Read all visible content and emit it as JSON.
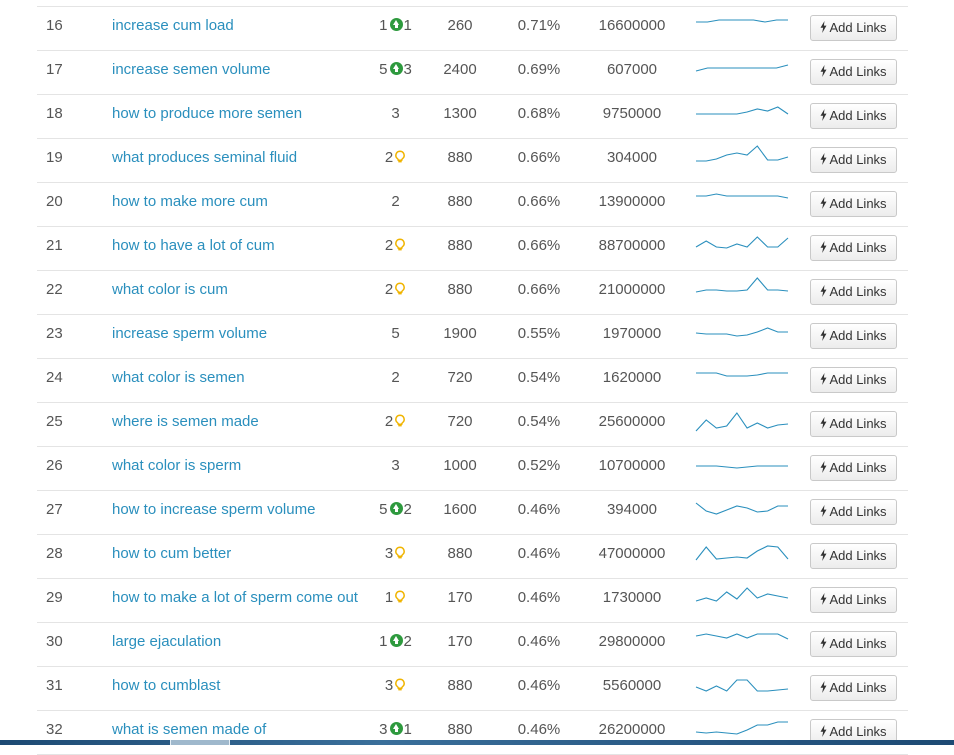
{
  "colors": {
    "link": "#2a8fbd",
    "up_badge": "#2e9a3e",
    "bulb": "#f0b400",
    "spark": "#2a8fbd",
    "row_border": "#e4e4e4"
  },
  "icons": {
    "up": "arrow-circle-up-icon",
    "bulb": "lightbulb-icon",
    "bolt": "bolt-icon"
  },
  "button_label": "Add Links",
  "rows": [
    {
      "rank": "16",
      "keyword": "increase cum load",
      "opp": "1",
      "badge": "up",
      "badge_value": "1",
      "volume": "260",
      "ctr": "0.71%",
      "results": "16600000",
      "trend": [
        4,
        4,
        2,
        2,
        2,
        2,
        4,
        2,
        2
      ]
    },
    {
      "rank": "17",
      "keyword": "increase semen volume",
      "opp": "5",
      "badge": "up",
      "badge_value": "3",
      "volume": "2400",
      "ctr": "0.69%",
      "results": "607000",
      "trend": [
        9,
        6,
        6,
        6,
        6,
        6,
        6,
        6,
        3
      ]
    },
    {
      "rank": "18",
      "keyword": "how to produce more semen",
      "opp": "3",
      "badge": "",
      "badge_value": "",
      "volume": "1300",
      "ctr": "0.68%",
      "results": "9750000",
      "trend": [
        8,
        8,
        8,
        8,
        8,
        6,
        3,
        5,
        1,
        8
      ]
    },
    {
      "rank": "19",
      "keyword": "what produces seminal fluid",
      "opp": "2",
      "badge": "bulb",
      "badge_value": "",
      "volume": "880",
      "ctr": "0.66%",
      "results": "304000",
      "trend": [
        11,
        11,
        9,
        5,
        3,
        5,
        -4,
        10,
        10,
        7
      ]
    },
    {
      "rank": "20",
      "keyword": "how to make more cum",
      "opp": "2",
      "badge": "",
      "badge_value": "",
      "volume": "880",
      "ctr": "0.66%",
      "results": "13900000",
      "trend": [
        2,
        2,
        0,
        2,
        2,
        2,
        2,
        2,
        2,
        4
      ]
    },
    {
      "rank": "21",
      "keyword": "how to have a lot of cum",
      "opp": "2",
      "badge": "bulb",
      "badge_value": "",
      "volume": "880",
      "ctr": "0.66%",
      "results": "88700000",
      "trend": [
        9,
        3,
        9,
        10,
        6,
        9,
        -1,
        9,
        9,
        0
      ]
    },
    {
      "rank": "22",
      "keyword": "what color is cum",
      "opp": "2",
      "badge": "bulb",
      "badge_value": "",
      "volume": "880",
      "ctr": "0.66%",
      "results": "21000000",
      "trend": [
        10,
        8,
        8,
        9,
        9,
        8,
        -4,
        8,
        8,
        9
      ]
    },
    {
      "rank": "23",
      "keyword": "increase sperm volume",
      "opp": "5",
      "badge": "",
      "badge_value": "",
      "volume": "1900",
      "ctr": "0.55%",
      "results": "1970000",
      "trend": [
        7,
        8,
        8,
        8,
        10,
        9,
        6,
        2,
        6,
        6
      ]
    },
    {
      "rank": "24",
      "keyword": "what color is semen",
      "opp": "2",
      "badge": "",
      "badge_value": "",
      "volume": "720",
      "ctr": "0.54%",
      "results": "1620000",
      "trend": [
        3,
        3,
        3,
        6,
        6,
        6,
        5,
        3,
        3,
        3
      ]
    },
    {
      "rank": "25",
      "keyword": "where is semen made",
      "opp": "2",
      "badge": "bulb",
      "badge_value": "",
      "volume": "720",
      "ctr": "0.54%",
      "results": "25600000",
      "trend": [
        17,
        6,
        14,
        12,
        -1,
        14,
        9,
        14,
        11,
        10
      ]
    },
    {
      "rank": "26",
      "keyword": "what color is sperm",
      "opp": "3",
      "badge": "",
      "badge_value": "",
      "volume": "1000",
      "ctr": "0.52%",
      "results": "10700000",
      "trend": [
        8,
        8,
        8,
        9,
        10,
        9,
        8,
        8,
        8,
        8
      ]
    },
    {
      "rank": "27",
      "keyword": "how to increase sperm volume",
      "opp": "5",
      "badge": "up",
      "badge_value": "2",
      "volume": "1600",
      "ctr": "0.46%",
      "results": "394000",
      "trend": [
        1,
        9,
        12,
        8,
        4,
        6,
        10,
        9,
        4,
        4
      ]
    },
    {
      "rank": "28",
      "keyword": "how to cum better",
      "opp": "3",
      "badge": "bulb",
      "badge_value": "",
      "volume": "880",
      "ctr": "0.46%",
      "results": "47000000",
      "trend": [
        14,
        1,
        13,
        12,
        11,
        12,
        5,
        0,
        1,
        13
      ]
    },
    {
      "rank": "29",
      "keyword": "how to make a lot of sperm come out",
      "opp": "1",
      "badge": "bulb",
      "badge_value": "",
      "volume": "170",
      "ctr": "0.46%",
      "results": "1730000",
      "trend": [
        11,
        8,
        11,
        2,
        9,
        -2,
        8,
        4,
        6,
        8
      ]
    },
    {
      "rank": "30",
      "keyword": "large ejaculation",
      "opp": "1",
      "badge": "up",
      "badge_value": "2",
      "volume": "170",
      "ctr": "0.46%",
      "results": "29800000",
      "trend": [
        2,
        0,
        2,
        4,
        0,
        4,
        0,
        0,
        0,
        5
      ]
    },
    {
      "rank": "31",
      "keyword": "how to cumblast",
      "opp": "3",
      "badge": "bulb",
      "badge_value": "",
      "volume": "880",
      "ctr": "0.46%",
      "results": "5560000",
      "trend": [
        9,
        13,
        8,
        13,
        2,
        2,
        13,
        13,
        12,
        11
      ]
    },
    {
      "rank": "32",
      "keyword": "what is semen made of",
      "opp": "3",
      "badge": "up",
      "badge_value": "1",
      "volume": "880",
      "ctr": "0.46%",
      "results": "26200000",
      "trend": [
        10,
        11,
        10,
        11,
        12,
        8,
        3,
        3,
        0,
        0
      ]
    }
  ]
}
